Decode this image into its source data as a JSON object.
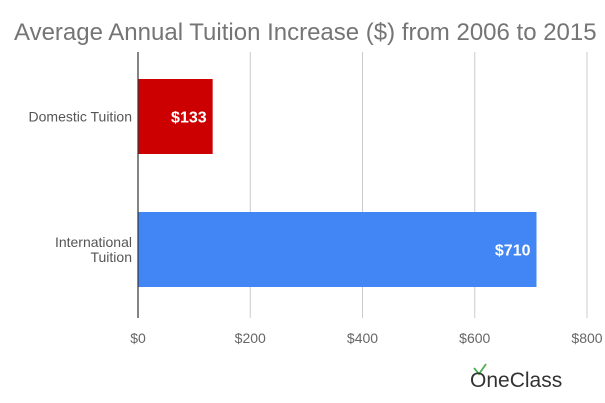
{
  "chart_data": {
    "type": "bar",
    "orientation": "horizontal",
    "title": "Average Annual Tuition Increase ($) from 2006 to 2015",
    "categories": [
      [
        "Domestic Tuition"
      ],
      [
        "International",
        "Tuition"
      ]
    ],
    "values": [
      133,
      710
    ],
    "data_labels": [
      "$133",
      "$710"
    ],
    "colors": [
      "#cc0000",
      "#4285f4"
    ],
    "xlim": [
      0,
      800
    ],
    "ticks": [
      0,
      200,
      400,
      600,
      800
    ],
    "tick_labels": [
      "$0",
      "$200",
      "$400",
      "$600",
      "$800"
    ],
    "grid": true,
    "legend": "none"
  },
  "brand": {
    "name": "OneClass",
    "accent": "#4caf50"
  }
}
